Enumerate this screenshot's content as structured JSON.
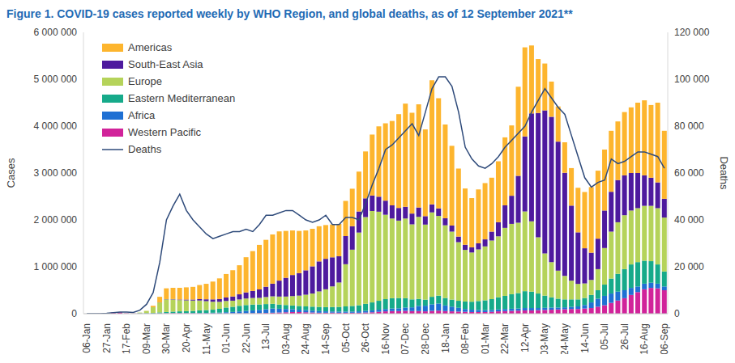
{
  "chart_data": {
    "type": "bar",
    "title": "Figure 1. COVID-19 cases reported weekly by WHO Region, and global deaths, as of 12 September 2021**",
    "y_label": "Cases",
    "y2_label": "Deaths",
    "stacked": true,
    "grid": false,
    "legend": "upper left",
    "categories": [
      "06-Jan",
      null,
      null,
      "27-Jan",
      null,
      null,
      "17-Feb",
      null,
      null,
      "09-Mar",
      null,
      null,
      "30-Mar",
      null,
      null,
      "20-Apr",
      null,
      null,
      "11-May",
      null,
      null,
      "01-Jun",
      null,
      null,
      "22-Jun",
      null,
      null,
      "13-Jul",
      null,
      null,
      "03-Aug",
      null,
      null,
      "24-Aug",
      null,
      null,
      "14-Sep",
      null,
      null,
      "05-Oct",
      null,
      null,
      "26-Oct",
      null,
      null,
      "16-Nov",
      null,
      null,
      "07-Dec",
      null,
      null,
      "28-Dec",
      null,
      null,
      "18-Jan",
      null,
      null,
      "08-Feb",
      null,
      null,
      "01-Mar",
      null,
      null,
      "22-Mar",
      null,
      null,
      "12-Apr",
      null,
      null,
      "03-May",
      null,
      null,
      "24-May",
      null,
      null,
      "14-Jun",
      null,
      null,
      "05-Jul",
      null,
      null,
      "26-Jul",
      null,
      null,
      "16-Aug",
      null,
      null,
      "06-Sep"
    ],
    "ylim": [
      0,
      6000000
    ],
    "yticks": [
      0,
      {
        "value": 1000000,
        "label": "1 000 000"
      },
      {
        "value": 2000000,
        "label": "2 000 000"
      },
      {
        "value": 3000000,
        "label": "3 000 000"
      },
      {
        "value": 4000000,
        "label": "4 000 000"
      },
      {
        "value": 5000000,
        "label": "5 000 000"
      },
      {
        "value": 6000000,
        "label": "6 000 000"
      }
    ],
    "y2lim": [
      0,
      120000
    ],
    "y2ticks": [
      0,
      {
        "value": 20000,
        "label": "20 000"
      },
      {
        "value": 40000,
        "label": "40 000"
      },
      {
        "value": 60000,
        "label": "60 000"
      },
      {
        "value": 80000,
        "label": "80 000"
      },
      {
        "value": 100000,
        "label": "100 000"
      },
      {
        "value": 120000,
        "label": "120 000"
      }
    ],
    "series": [
      {
        "name": "Americas",
        "type": "bar",
        "color": "#FDB52E",
        "values": [
          0,
          0,
          0,
          0,
          0,
          0,
          0,
          50,
          500,
          3000,
          30000,
          120000,
          230000,
          240000,
          250000,
          260000,
          270000,
          300000,
          330000,
          380000,
          440000,
          500000,
          560000,
          620000,
          750000,
          850000,
          950000,
          1000000,
          1050000,
          1050000,
          1000000,
          950000,
          900000,
          850000,
          800000,
          750000,
          720000,
          700000,
          690000,
          750000,
          800000,
          850000,
          1000000,
          1300000,
          1500000,
          1650000,
          1800000,
          2000000,
          2200000,
          2150000,
          2200000,
          1850000,
          2650000,
          2350000,
          2000000,
          1700000,
          1450000,
          1200000,
          1050000,
          1150000,
          1200000,
          1150000,
          1300000,
          1450000,
          1500000,
          1900000,
          1900000,
          1450000,
          1150000,
          1000000,
          750000,
          750000,
          650000,
          800000,
          950000,
          1200000,
          1400000,
          1450000,
          1300000,
          1300000,
          1250000,
          1350000,
          1400000,
          1500000,
          1600000,
          1550000,
          1700000,
          1450000
        ]
      },
      {
        "name": "South-East Asia",
        "type": "bar",
        "color": "#4E1A9E",
        "values": [
          0,
          0,
          0,
          0,
          0,
          0,
          0,
          10,
          100,
          300,
          1000,
          2500,
          5000,
          8000,
          12000,
          18000,
          22000,
          30000,
          40000,
          50000,
          60000,
          75000,
          90000,
          110000,
          130000,
          150000,
          180000,
          220000,
          270000,
          340000,
          400000,
          450000,
          480000,
          520000,
          580000,
          640000,
          650000,
          620000,
          560000,
          600000,
          500000,
          450000,
          400000,
          330000,
          320000,
          300000,
          280000,
          270000,
          250000,
          230000,
          200000,
          180000,
          170000,
          160000,
          150000,
          130000,
          120000,
          110000,
          110000,
          130000,
          150000,
          190000,
          300000,
          480000,
          600000,
          1000000,
          1600000,
          2300000,
          2650000,
          3050000,
          3100000,
          2750000,
          2200000,
          1600000,
          1100000,
          750000,
          580000,
          650000,
          800000,
          850000,
          900000,
          850000,
          800000,
          750000,
          650000,
          600000,
          550000,
          400000
        ]
      },
      {
        "name": "Europe",
        "type": "bar",
        "color": "#B5D35A",
        "values": [
          0,
          0,
          0,
          10,
          20,
          30,
          50,
          1500,
          12000,
          45000,
          120000,
          210000,
          270000,
          260000,
          240000,
          230000,
          220000,
          210000,
          190000,
          170000,
          150000,
          140000,
          130000,
          135000,
          140000,
          140000,
          140000,
          150000,
          160000,
          170000,
          180000,
          200000,
          220000,
          250000,
          280000,
          330000,
          380000,
          440000,
          520000,
          900000,
          1200000,
          1550000,
          1850000,
          1950000,
          1900000,
          1800000,
          1700000,
          1650000,
          1700000,
          1600000,
          1750000,
          1600000,
          1800000,
          1700000,
          1550000,
          1450000,
          1250000,
          1100000,
          1050000,
          1100000,
          1150000,
          1250000,
          1300000,
          1450000,
          1500000,
          1500000,
          1700000,
          1500000,
          1200000,
          900000,
          750000,
          600000,
          500000,
          400000,
          330000,
          310000,
          320000,
          450000,
          780000,
          1000000,
          1100000,
          1150000,
          1150000,
          1150000,
          1170000,
          1180000,
          1200000,
          1150000
        ]
      },
      {
        "name": "Eastern Mediterranean",
        "type": "bar",
        "color": "#16AA8A",
        "values": [
          0,
          0,
          0,
          0,
          0,
          0,
          0,
          500,
          7000,
          9000,
          12000,
          20000,
          25000,
          30000,
          35000,
          40000,
          45000,
          55000,
          60000,
          65000,
          80000,
          100000,
          110000,
          120000,
          125000,
          125000,
          115000,
          110000,
          100000,
          90000,
          85000,
          80000,
          80000,
          80000,
          85000,
          90000,
          90000,
          95000,
          100000,
          110000,
          120000,
          130000,
          150000,
          170000,
          190000,
          210000,
          220000,
          220000,
          200000,
          170000,
          150000,
          130000,
          160000,
          170000,
          160000,
          150000,
          150000,
          160000,
          170000,
          190000,
          210000,
          230000,
          260000,
          280000,
          310000,
          330000,
          360000,
          350000,
          310000,
          260000,
          220000,
          190000,
          170000,
          160000,
          150000,
          150000,
          160000,
          180000,
          240000,
          320000,
          380000,
          450000,
          500000,
          520000,
          490000,
          460000,
          410000,
          320000
        ]
      },
      {
        "name": "Africa",
        "type": "bar",
        "color": "#1F70D3",
        "values": [
          0,
          0,
          0,
          0,
          0,
          0,
          0,
          0,
          20,
          100,
          500,
          1500,
          3000,
          4000,
          5000,
          6000,
          8000,
          10000,
          12000,
          15000,
          18000,
          25000,
          30000,
          40000,
          50000,
          60000,
          70000,
          80000,
          90000,
          80000,
          70000,
          60000,
          50000,
          45000,
          40000,
          35000,
          30000,
          25000,
          25000,
          25000,
          25000,
          30000,
          35000,
          40000,
          45000,
          50000,
          55000,
          60000,
          70000,
          80000,
          110000,
          120000,
          140000,
          150000,
          120000,
          100000,
          80000,
          60000,
          50000,
          45000,
          40000,
          40000,
          40000,
          45000,
          45000,
          45000,
          50000,
          50000,
          45000,
          45000,
          45000,
          40000,
          40000,
          45000,
          55000,
          75000,
          120000,
          170000,
          200000,
          200000,
          190000,
          170000,
          150000,
          120000,
          120000,
          110000,
          100000,
          80000
        ]
      },
      {
        "name": "Western Pacific",
        "type": "bar",
        "color": "#D1239A",
        "values": [
          50,
          100,
          2000,
          12000,
          25000,
          30000,
          8000,
          3500,
          5000,
          4000,
          5000,
          6000,
          8000,
          10000,
          10000,
          8000,
          7000,
          6000,
          5000,
          5000,
          5000,
          6000,
          7000,
          8000,
          9000,
          10000,
          12000,
          15000,
          20000,
          25000,
          30000,
          35000,
          35000,
          30000,
          25000,
          20000,
          20000,
          22000,
          20000,
          20000,
          20000,
          20000,
          25000,
          30000,
          40000,
          50000,
          55000,
          55000,
          60000,
          55000,
          55000,
          50000,
          60000,
          65000,
          55000,
          50000,
          45000,
          40000,
          35000,
          35000,
          35000,
          40000,
          50000,
          55000,
          60000,
          65000,
          70000,
          70000,
          75000,
          80000,
          85000,
          90000,
          95000,
          100000,
          100000,
          110000,
          120000,
          150000,
          180000,
          230000,
          280000,
          330000,
          400000,
          460000,
          520000,
          550000,
          540000,
          500000
        ]
      },
      {
        "name": "Deaths",
        "type": "line",
        "axis": "y2",
        "color": "#2E4A7A",
        "line_style": "solid",
        "marker": "none",
        "values": [
          0,
          0,
          10,
          150,
          450,
          700,
          700,
          500,
          1500,
          4000,
          9000,
          22000,
          40000,
          46000,
          51000,
          44000,
          40000,
          37000,
          34000,
          32000,
          33000,
          34000,
          35000,
          35000,
          36000,
          35000,
          38000,
          42000,
          42000,
          43000,
          44000,
          44000,
          42000,
          40000,
          39000,
          40000,
          42000,
          38000,
          38000,
          41000,
          41000,
          40000,
          47000,
          55000,
          62000,
          70000,
          72000,
          75000,
          78000,
          81000,
          76000,
          86000,
          96000,
          101000,
          101000,
          97000,
          86000,
          71000,
          66000,
          63000,
          62000,
          64000,
          67000,
          71000,
          74000,
          77000,
          80000,
          86000,
          91000,
          96000,
          92000,
          88000,
          85000,
          76000,
          67000,
          58000,
          54000,
          56000,
          57000,
          66000,
          64000,
          65000,
          67000,
          69000,
          69000,
          68000,
          67000,
          62000
        ]
      }
    ]
  }
}
